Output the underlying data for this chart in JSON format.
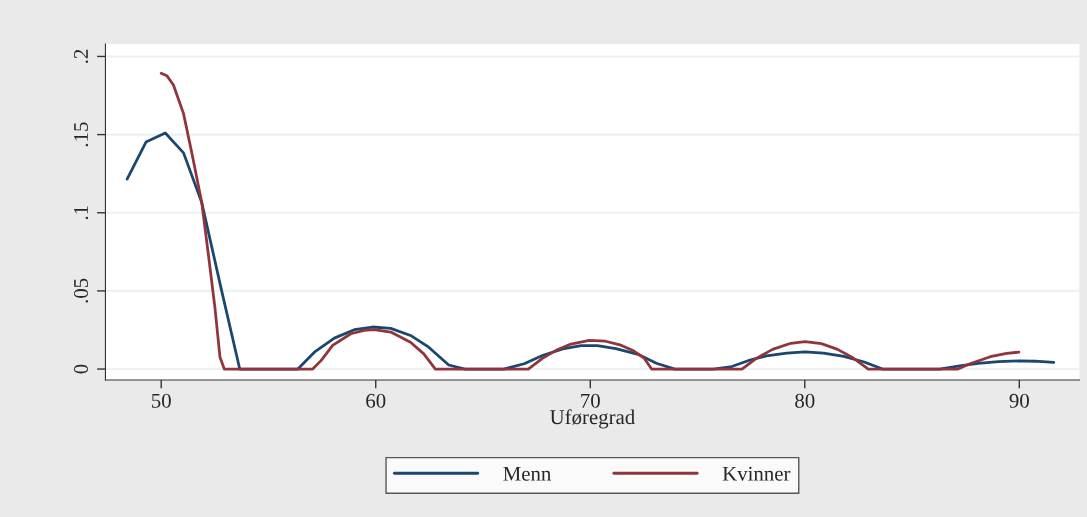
{
  "chart_data": {
    "type": "line",
    "xlabel": "Uføregrad",
    "xlim": [
      47.4,
      92.8
    ],
    "xticks": [
      50,
      60,
      70,
      80,
      90
    ],
    "ylim": [
      -0.007,
      0.208
    ],
    "yticks": [
      0,
      {
        "value": 0.05,
        "label": ".05"
      },
      {
        "value": 0.1,
        "label": ".1"
      },
      {
        "value": 0.15,
        "label": ".15"
      },
      {
        "value": 0.2,
        "label": ".2"
      }
    ],
    "grid": "y",
    "legend": "bottom",
    "marker": "none",
    "line_style": "solid",
    "series": [
      {
        "name": "Menn",
        "color": "#1a476f",
        "x": [
          48.41,
          49.29,
          50.19,
          51.04,
          51.89,
          52.81,
          53.66,
          56.37,
          57.14,
          58.07,
          59.0,
          59.85,
          60.7,
          61.62,
          62.47,
          63.4,
          64.16,
          65.97,
          66.92,
          67.77,
          68.72,
          69.57,
          70.33,
          71.19,
          72.23,
          73.08,
          73.94,
          75.74,
          76.6,
          77.45,
          78.21,
          79.16,
          80.01,
          80.87,
          81.82,
          82.77,
          83.62,
          86.28,
          87.23,
          88.08,
          89.03,
          89.98,
          90.74,
          91.6
        ],
        "values": [
          0.1215,
          0.1452,
          0.151,
          0.1383,
          0.1065,
          0.0505,
          0,
          0,
          0.0108,
          0.0198,
          0.0252,
          0.0269,
          0.026,
          0.0215,
          0.014,
          0.0026,
          0,
          0,
          0.0034,
          0.0087,
          0.0129,
          0.015,
          0.015,
          0.0131,
          0.0094,
          0.0037,
          0,
          0,
          0.0016,
          0.0058,
          0.0084,
          0.0102,
          0.011,
          0.0102,
          0.0081,
          0.0045,
          0,
          0,
          0.0021,
          0.0037,
          0.0047,
          0.0052,
          0.005,
          0.0042
        ]
      },
      {
        "name": "Kvinner",
        "color": "#90353b",
        "x": [
          50.0,
          50.26,
          50.57,
          51.04,
          51.42,
          51.89,
          52.19,
          52.5,
          52.74,
          52.94,
          57.06,
          57.45,
          57.99,
          58.84,
          59.46,
          59.92,
          60.7,
          61.62,
          62.24,
          62.78,
          67.11,
          67.77,
          68.43,
          69.1,
          69.95,
          70.71,
          71.38,
          72.04,
          72.52,
          72.86,
          77.07,
          77.74,
          78.5,
          79.35,
          80.01,
          80.77,
          81.53,
          82.2,
          82.96,
          87.14,
          87.7,
          88.65,
          89.41,
          89.98
        ],
        "values": [
          0.1892,
          0.1877,
          0.1817,
          0.1634,
          0.1387,
          0.1065,
          0.0742,
          0.0398,
          0.0075,
          0,
          0,
          0.0054,
          0.0151,
          0.0226,
          0.0247,
          0.0252,
          0.0237,
          0.0172,
          0.0097,
          0,
          0,
          0.0068,
          0.0121,
          0.016,
          0.0184,
          0.0178,
          0.0155,
          0.0115,
          0.0068,
          0,
          0,
          0.0068,
          0.0126,
          0.0165,
          0.0176,
          0.0163,
          0.0126,
          0.0076,
          0,
          0,
          0.0034,
          0.0079,
          0.01,
          0.0108
        ]
      }
    ]
  }
}
